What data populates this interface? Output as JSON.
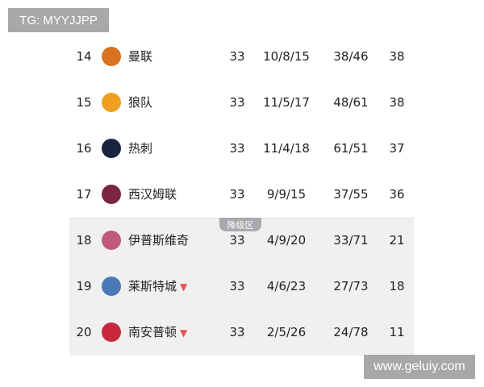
{
  "watermarks": {
    "top_left": "TG: MYYJJPP",
    "bottom_right": "www.geluiy.com"
  },
  "relegation_label": "降级区",
  "colors": {
    "relegation_bg": "#f0f0f1",
    "badge": "#a9a9ad",
    "down_arrow": "#e05555"
  },
  "rows": [
    {
      "rank": "14",
      "team": "曼联",
      "played": "33",
      "wdl": "10/8/15",
      "goals": "38/46",
      "points": "38",
      "logo": "manchester-united-crest",
      "logo_color": "#d9731f",
      "trend": ""
    },
    {
      "rank": "15",
      "team": "狼队",
      "played": "33",
      "wdl": "11/5/17",
      "goals": "48/61",
      "points": "38",
      "logo": "wolves-crest",
      "logo_color": "#f0a020",
      "trend": ""
    },
    {
      "rank": "16",
      "team": "热刺",
      "played": "33",
      "wdl": "11/4/18",
      "goals": "61/51",
      "points": "37",
      "logo": "tottenham-crest",
      "logo_color": "#1a2340",
      "trend": ""
    },
    {
      "rank": "17",
      "team": "西汉姆联",
      "played": "33",
      "wdl": "9/9/15",
      "goals": "37/55",
      "points": "36",
      "logo": "west-ham-crest",
      "logo_color": "#7a2640",
      "trend": ""
    },
    {
      "rank": "18",
      "team": "伊普斯维奇",
      "played": "33",
      "wdl": "4/9/20",
      "goals": "33/71",
      "points": "21",
      "logo": "ipswich-crest",
      "logo_color": "#c05a7a",
      "trend": ""
    },
    {
      "rank": "19",
      "team": "莱斯特城",
      "played": "33",
      "wdl": "4/6/23",
      "goals": "27/73",
      "points": "18",
      "logo": "leicester-crest",
      "logo_color": "#4a7ab8",
      "trend": "▼"
    },
    {
      "rank": "20",
      "team": "南安普顿",
      "played": "33",
      "wdl": "2/5/26",
      "goals": "24/78",
      "points": "11",
      "logo": "southampton-crest",
      "logo_color": "#c8283a",
      "trend": "▼"
    }
  ]
}
